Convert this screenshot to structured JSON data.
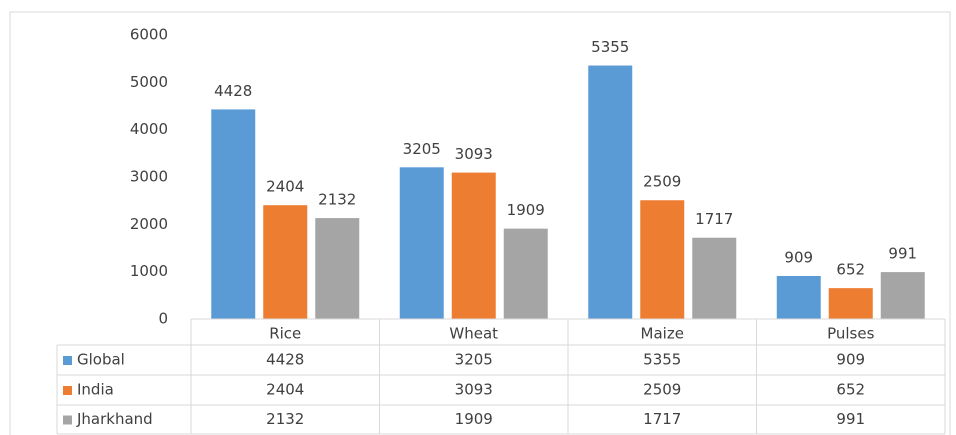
{
  "chart_data": {
    "type": "bar",
    "categories": [
      "Rice",
      "Wheat",
      "Maize",
      "Pulses"
    ],
    "series": [
      {
        "name": "Global",
        "color": "#5b9bd5",
        "values": [
          4428,
          3205,
          5355,
          909
        ]
      },
      {
        "name": "India",
        "color": "#ed7d31",
        "values": [
          2404,
          3093,
          2509,
          652
        ]
      },
      {
        "name": "Jharkhand",
        "color": "#a5a5a5",
        "values": [
          2132,
          1909,
          1717,
          991
        ]
      }
    ],
    "ylim": [
      0,
      6000
    ],
    "yticks": [
      0,
      1000,
      2000,
      3000,
      4000,
      5000,
      6000
    ],
    "grid": false,
    "data_table": true
  }
}
